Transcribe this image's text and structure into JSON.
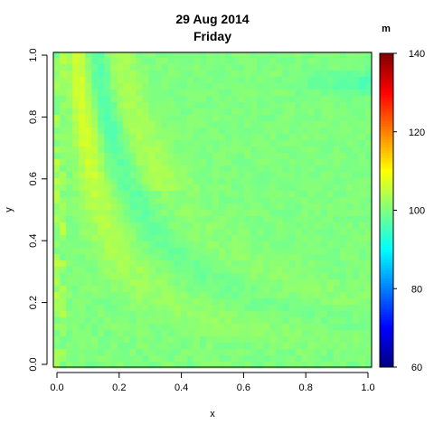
{
  "chart_data": {
    "type": "heatmap",
    "title": "29 Aug 2014",
    "subtitle": "Friday",
    "xlabel": "x",
    "ylabel": "y",
    "xlim": [
      0,
      1
    ],
    "ylim": [
      0,
      1
    ],
    "x_ticks": [
      "0.0",
      "0.2",
      "0.4",
      "0.6",
      "0.8",
      "1.0"
    ],
    "y_ticks": [
      "0.0",
      "0.2",
      "0.4",
      "0.6",
      "0.8",
      "1.0"
    ],
    "grid_size": [
      50,
      50
    ],
    "baseline_value": 100,
    "colorbar": {
      "label": "m",
      "min": 60,
      "max": 140,
      "ticks": [
        "60",
        "80",
        "100",
        "120",
        "140"
      ],
      "colormap": "jet"
    },
    "pattern_description": "Values near 100 (green) in the lower-right region; a curved band of elevated values (~103-110, yellow) follows a hyperbola-like curve from the upper-left, with a cyan trough (~94-97) parallel to it near x≈0.1-0.2 and y≈0.8-0.95 along the top-right."
  },
  "colors": {
    "axis": "#000000",
    "background": "#ffffff"
  }
}
